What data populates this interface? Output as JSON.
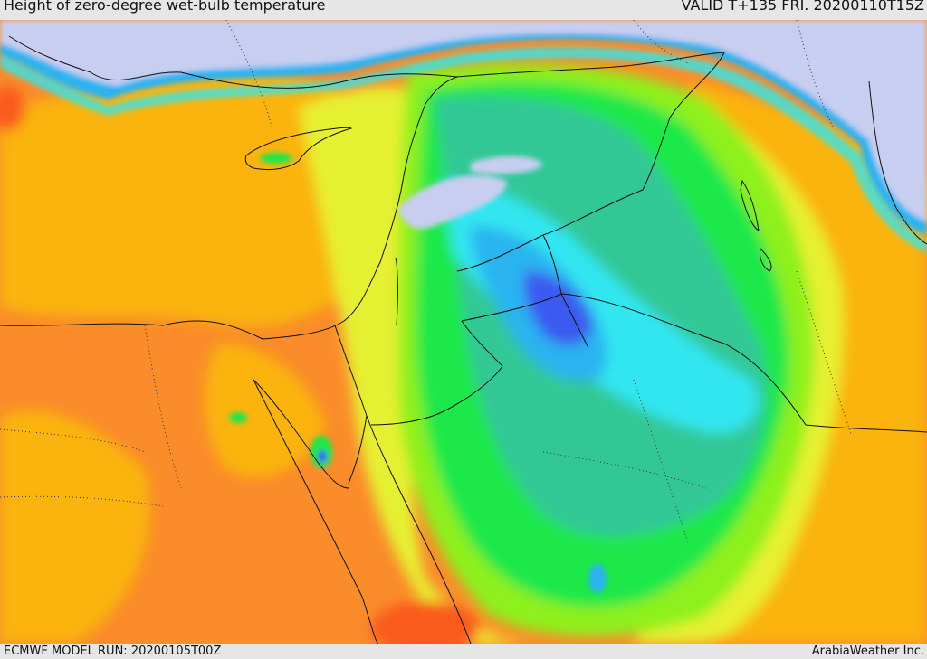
{
  "header": {
    "title": "Height of zero-degree wet-bulb temperature",
    "valid": "VALID T+135 FRI. 20200110T15Z"
  },
  "footer": {
    "model_run": "ECMWF MODEL RUN: 20200105T00Z",
    "credit": "ArabiaWeather Inc."
  },
  "map": {
    "field": "height of zero-degree wet-bulb temperature",
    "palette": {
      "lavender": "#c8cef0",
      "blue": "#3a5af0",
      "light_blue": "#2ab4f0",
      "cyan": "#30e6f0",
      "teal": "#30c896",
      "green": "#1ee84a",
      "lime": "#8ef01e",
      "yellow": "#e6f032",
      "gold": "#fab40a",
      "orange": "#fa8c2a",
      "red_orange": "#fa5a1e"
    }
  }
}
